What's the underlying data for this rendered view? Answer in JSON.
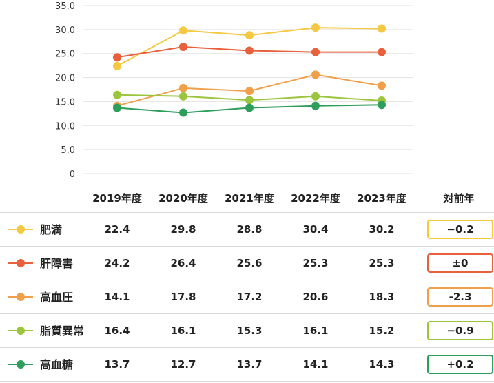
{
  "chart_data": {
    "type": "line",
    "categories": [
      "2019年度",
      "2020年度",
      "2021年度",
      "2022年度",
      "2023年度"
    ],
    "yticks": [
      "35.0",
      "30.0",
      "25.0",
      "20.0",
      "15.0",
      "10.0",
      "5.0",
      "0"
    ],
    "ylim": [
      0,
      35
    ],
    "grid": true,
    "series": [
      {
        "name": "肥満",
        "values": [
          22.4,
          29.8,
          28.8,
          30.4,
          30.2
        ],
        "value_labels": [
          "22.4",
          "29.8",
          "28.8",
          "30.4",
          "30.2"
        ],
        "yoy": "−0.2",
        "color": "#F5C842"
      },
      {
        "name": "肝障害",
        "values": [
          24.2,
          26.4,
          25.6,
          25.3,
          25.3
        ],
        "value_labels": [
          "24.2",
          "26.4",
          "25.6",
          "25.3",
          "25.3"
        ],
        "yoy": "±0",
        "color": "#E8603C"
      },
      {
        "name": "高血圧",
        "values": [
          14.1,
          17.8,
          17.2,
          20.6,
          18.3
        ],
        "value_labels": [
          "14.1",
          "17.8",
          "17.2",
          "20.6",
          "18.3"
        ],
        "yoy": "-2.3",
        "color": "#F0A04B"
      },
      {
        "name": "脂質異常",
        "values": [
          16.4,
          16.1,
          15.3,
          16.1,
          15.2
        ],
        "value_labels": [
          "16.4",
          "16.1",
          "15.3",
          "16.1",
          "15.2"
        ],
        "yoy": "−0.9",
        "color": "#9BC53D"
      },
      {
        "name": "高血糖",
        "values": [
          13.7,
          12.7,
          13.7,
          14.1,
          14.3
        ],
        "value_labels": [
          "13.7",
          "12.7",
          "13.7",
          "14.1",
          "14.3"
        ],
        "yoy": "+0.2",
        "color": "#2E9E5B"
      }
    ]
  },
  "table": {
    "yoy_header": "対前年"
  }
}
